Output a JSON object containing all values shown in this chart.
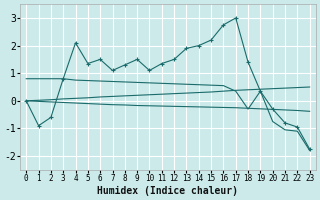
{
  "xlabel": "Humidex (Indice chaleur)",
  "background_color": "#cceaea",
  "grid_color": "#b8d8d8",
  "line_color": "#1a6b6b",
  "xlim": [
    -0.5,
    23.5
  ],
  "ylim": [
    -2.5,
    3.5
  ],
  "yticks": [
    -2,
    -1,
    0,
    1,
    2,
    3
  ],
  "xticks": [
    0,
    1,
    2,
    3,
    4,
    5,
    6,
    7,
    8,
    9,
    10,
    11,
    12,
    13,
    14,
    15,
    16,
    17,
    18,
    19,
    20,
    21,
    22,
    23
  ],
  "line1_x": [
    0,
    1,
    2,
    3,
    4,
    5,
    6,
    7,
    8,
    9,
    10,
    11,
    12,
    13,
    14,
    15,
    16,
    17,
    18,
    19,
    20,
    21,
    22,
    23
  ],
  "line1_y": [
    0.0,
    -0.9,
    -0.6,
    0.8,
    2.1,
    1.35,
    1.5,
    1.1,
    1.3,
    1.5,
    1.1,
    1.35,
    1.5,
    1.9,
    2.0,
    2.2,
    2.75,
    3.0,
    1.4,
    0.35,
    -0.3,
    -0.8,
    -0.95,
    -1.75
  ],
  "line2_x": [
    0,
    3,
    4,
    16,
    17,
    18,
    19,
    20,
    21,
    22,
    23
  ],
  "line2_y": [
    0.8,
    0.8,
    0.75,
    0.55,
    0.35,
    -0.3,
    0.35,
    -0.75,
    -1.05,
    -1.1,
    -1.8
  ],
  "line3_x": [
    0,
    1,
    2,
    3,
    4,
    5,
    6,
    7,
    8,
    9,
    10,
    11,
    12,
    13,
    14,
    15,
    16,
    17,
    18,
    19,
    20,
    21,
    22,
    23
  ],
  "line3_y": [
    0.0,
    -0.02,
    -0.04,
    -0.06,
    -0.08,
    -0.1,
    -0.12,
    -0.14,
    -0.15,
    -0.17,
    -0.18,
    -0.19,
    -0.2,
    -0.21,
    -0.22,
    -0.23,
    -0.24,
    -0.25,
    -0.27,
    -0.29,
    -0.31,
    -0.33,
    -0.35,
    -0.38
  ],
  "line4_x": [
    0,
    1,
    2,
    3,
    4,
    5,
    6,
    7,
    8,
    9,
    10,
    11,
    12,
    13,
    14,
    15,
    16,
    17,
    18,
    19,
    20,
    21,
    22,
    23
  ],
  "line4_y": [
    0.0,
    0.02,
    0.04,
    0.07,
    0.09,
    0.11,
    0.14,
    0.16,
    0.18,
    0.2,
    0.22,
    0.24,
    0.26,
    0.28,
    0.3,
    0.32,
    0.35,
    0.38,
    0.4,
    0.42,
    0.44,
    0.46,
    0.48,
    0.5
  ]
}
